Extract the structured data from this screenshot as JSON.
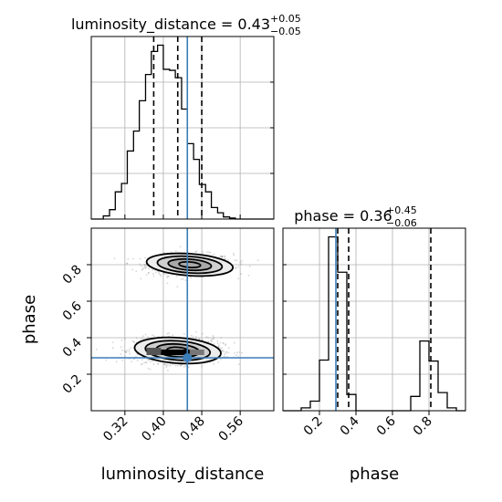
{
  "chart_data": {
    "type": "corner",
    "parameters": [
      "luminosity_distance",
      "phase"
    ],
    "truths": {
      "luminosity_distance": 0.45,
      "phase": 0.29
    },
    "titles": {
      "luminosity_distance": {
        "name": "luminosity_distance",
        "value": "0.43",
        "plus": "+0.05",
        "minus": "−0.05"
      },
      "phase": {
        "name": "phase",
        "value": "0.36",
        "plus": "+0.45",
        "minus": "−0.06"
      }
    },
    "axes": {
      "luminosity_distance": {
        "label": "luminosity_distance",
        "range": [
          0.25,
          0.63
        ],
        "ticks": [
          0.32,
          0.4,
          0.48,
          0.56
        ],
        "tick_labels": [
          "0.32",
          "0.40",
          "0.48",
          "0.56"
        ]
      },
      "phase": {
        "label": "phase",
        "range": [
          0.0,
          1.0
        ],
        "ticks": [
          0.2,
          0.4,
          0.6,
          0.8
        ],
        "tick_labels": [
          "0.2",
          "0.4",
          "0.6",
          "0.8"
        ]
      }
    },
    "hist_luminosity_distance": {
      "bin_edges": [
        0.25,
        0.263,
        0.275,
        0.288,
        0.3,
        0.313,
        0.325,
        0.338,
        0.35,
        0.363,
        0.375,
        0.388,
        0.4,
        0.413,
        0.425,
        0.438,
        0.45,
        0.463,
        0.475,
        0.488,
        0.5,
        0.513,
        0.525,
        0.538,
        0.55,
        0.563,
        0.575,
        0.588,
        0.6,
        0.613,
        0.63
      ],
      "counts": [
        0,
        0,
        0.3,
        0.9,
        2.6,
        3.4,
        6.5,
        8.4,
        11.3,
        13.8,
        16.0,
        16.6,
        14.3,
        14.2,
        13.5,
        10.5,
        7.2,
        5.7,
        3.3,
        2.6,
        1.1,
        0.6,
        0.2,
        0.1,
        0,
        0,
        0,
        0,
        0,
        0
      ],
      "quantiles": [
        0.38,
        0.43,
        0.48
      ]
    },
    "hist_phase": {
      "bin_edges": [
        0.0,
        0.05,
        0.1,
        0.15,
        0.2,
        0.25,
        0.3,
        0.35,
        0.4,
        0.45,
        0.5,
        0.55,
        0.6,
        0.65,
        0.7,
        0.75,
        0.8,
        0.85,
        0.9,
        0.95,
        1.0
      ],
      "counts": [
        0,
        0,
        0.3,
        1.0,
        5.3,
        18.2,
        14.5,
        1.7,
        0,
        0,
        0,
        0,
        0,
        0,
        1.5,
        7.3,
        5.2,
        1.9,
        0.3,
        0
      ],
      "quantiles": [
        0.3,
        0.36,
        0.81
      ]
    },
    "density_2d": {
      "modes": [
        {
          "x": 0.455,
          "y": 0.8,
          "sx": 0.045,
          "sy": 0.03,
          "weight": 0.4
        },
        {
          "x": 0.43,
          "y": 0.33,
          "sx": 0.045,
          "sy": 0.035,
          "weight": 0.6
        }
      ],
      "dark_pixels": [
        {
          "x0": 0.395,
          "x1": 0.455,
          "y0": 0.305,
          "y1": 0.335,
          "shade": "#000000"
        },
        {
          "x0": 0.365,
          "x1": 0.395,
          "y0": 0.305,
          "y1": 0.345,
          "shade": "#555555"
        },
        {
          "x0": 0.455,
          "x1": 0.485,
          "y0": 0.305,
          "y1": 0.335,
          "shade": "#777777"
        }
      ]
    }
  }
}
